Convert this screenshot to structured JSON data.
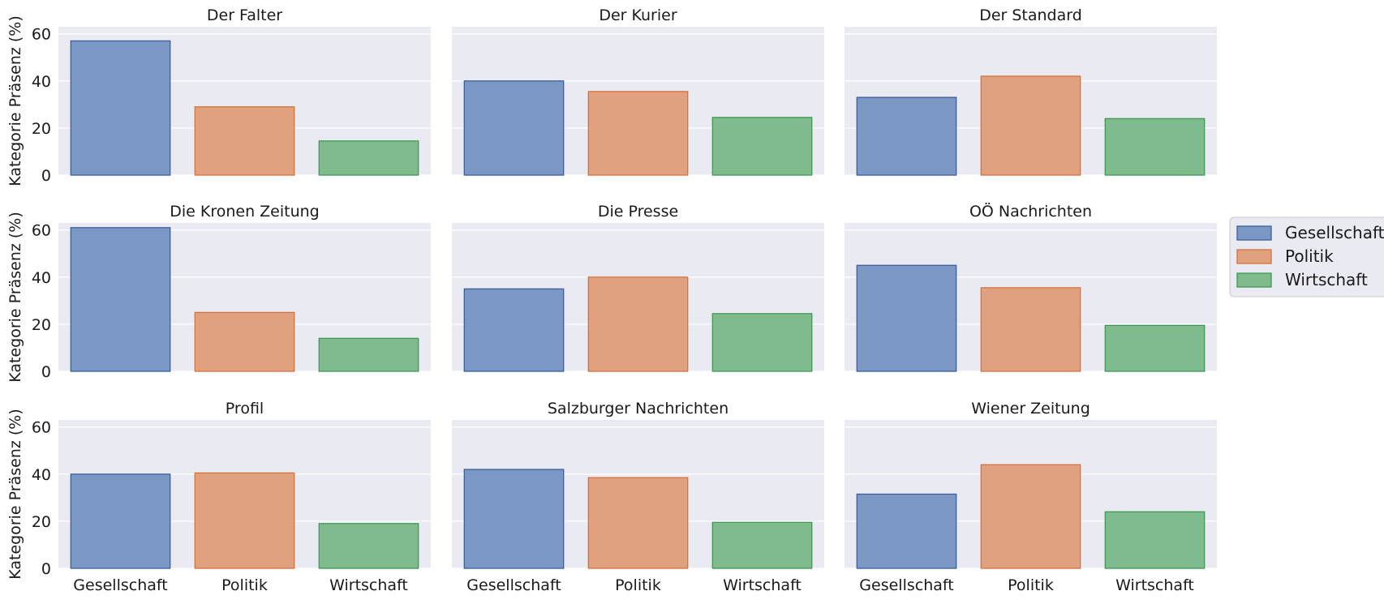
{
  "chart_data": {
    "type": "bar",
    "layout": "facet-grid-3x3",
    "ylabel": "Kategorie Präsenz (%)",
    "ylim": [
      0,
      63
    ],
    "yticks": [
      0,
      20,
      40,
      60
    ],
    "grid": true,
    "legend_placement": "right",
    "categories": [
      "Gesellschaft",
      "Politik",
      "Wirtschaft"
    ],
    "colors": {
      "Gesellschaft": "#7b98c5",
      "Politik": "#e1a07e",
      "Wirtschaft": "#80bb8e"
    },
    "edge_colors": {
      "Gesellschaft": "#3d5e9c",
      "Politik": "#d2743e",
      "Wirtschaft": "#3f9855"
    },
    "legend": [
      "Gesellschaft",
      "Politik",
      "Wirtschaft"
    ],
    "panels": [
      {
        "title": "Der Falter",
        "values": [
          57,
          29,
          14.5
        ]
      },
      {
        "title": "Der Kurier",
        "values": [
          40,
          35.5,
          24.5
        ]
      },
      {
        "title": "Der Standard",
        "values": [
          33,
          42,
          24
        ]
      },
      {
        "title": "Die Kronen Zeitung",
        "values": [
          61,
          25,
          14
        ]
      },
      {
        "title": "Die Presse",
        "values": [
          35,
          40,
          24.5
        ]
      },
      {
        "title": "OÖ Nachrichten",
        "values": [
          45,
          35.5,
          19.5
        ]
      },
      {
        "title": "Profil",
        "values": [
          40,
          40.5,
          19
        ]
      },
      {
        "title": "Salzburger Nachrichten",
        "values": [
          42,
          38.5,
          19.5
        ]
      },
      {
        "title": "Wiener Zeitung",
        "values": [
          31.5,
          44,
          24
        ]
      }
    ]
  }
}
